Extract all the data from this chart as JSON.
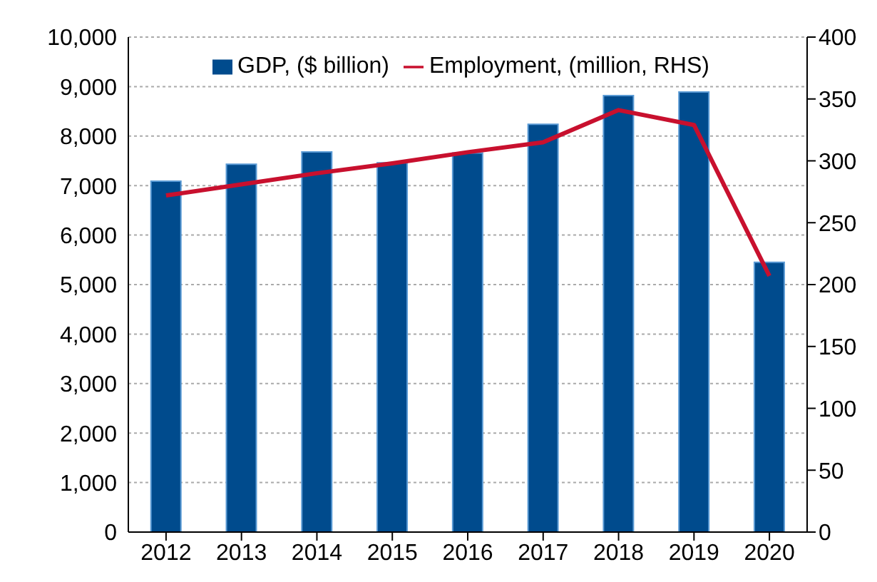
{
  "chart_data": {
    "type": "bar",
    "categories": [
      "2012",
      "2013",
      "2014",
      "2015",
      "2016",
      "2017",
      "2018",
      "2019",
      "2020"
    ],
    "series": [
      {
        "name": "GDP, ($ billion)",
        "color": "#004b8d",
        "values": [
          7090,
          7430,
          7680,
          7460,
          7660,
          8240,
          8820,
          8890,
          5450
        ]
      },
      {
        "name": "Employment, (million, RHS)",
        "type": "line",
        "axis": "y2",
        "color": "#c8102e",
        "values": [
          272,
          281,
          290,
          298,
          307,
          315,
          341,
          329,
          207
        ]
      }
    ],
    "ylim": [
      0,
      10000
    ],
    "yticks": [
      0,
      {
        "value": 1000,
        "label": "1,000"
      },
      {
        "value": 2000,
        "label": "2,000"
      },
      {
        "value": 3000,
        "label": "3,000"
      },
      {
        "value": 4000,
        "label": "4,000"
      },
      {
        "value": 5000,
        "label": "5,000"
      },
      {
        "value": 6000,
        "label": "6,000"
      },
      {
        "value": 7000,
        "label": "7,000"
      },
      {
        "value": 8000,
        "label": "8,000"
      },
      {
        "value": 9000,
        "label": "9,000"
      },
      {
        "value": 10000,
        "label": "10,000"
      }
    ],
    "y2lim": [
      0,
      400
    ],
    "y2ticks": [
      0,
      50,
      100,
      150,
      200,
      250,
      300,
      350,
      400
    ],
    "grid": "y",
    "legend": "top",
    "marker": "none",
    "line_style": "solid"
  }
}
